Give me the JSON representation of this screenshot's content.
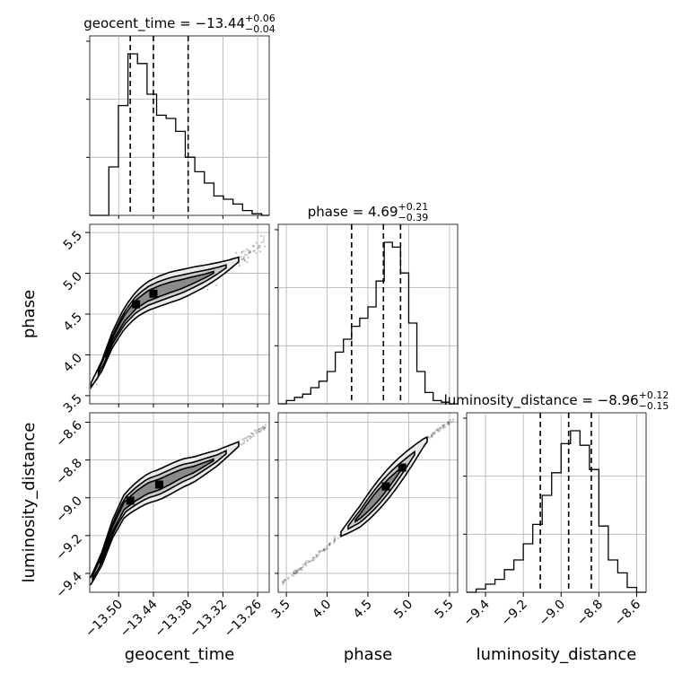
{
  "chart_data": {
    "type": "corner",
    "parameters": [
      "geocent_time",
      "phase",
      "luminosity_distance"
    ],
    "axis_labels": {
      "geocent_time": "geocent_time",
      "phase": "phase",
      "luminosity_distance": "luminosity_distance"
    },
    "ticks": {
      "geocent_time": {
        "range": [
          -13.55,
          -13.24
        ],
        "values": [
          -13.5,
          -13.44,
          -13.38,
          -13.32,
          -13.26
        ],
        "labels": [
          "−13.50",
          "−13.44",
          "−13.38",
          "−13.32",
          "−13.26"
        ]
      },
      "phase": {
        "range": [
          3.4,
          5.6
        ],
        "values": [
          3.5,
          4.0,
          4.5,
          5.0,
          5.5
        ],
        "labels": [
          "3.5",
          "4.0",
          "4.5",
          "5.0",
          "5.5"
        ]
      },
      "luminosity_distance": {
        "range": [
          -9.5,
          -8.55
        ],
        "values": [
          -9.4,
          -9.2,
          -9.0,
          -8.8,
          -8.6
        ],
        "labels": [
          "−9.4",
          "−9.2",
          "−9.0",
          "−8.8",
          "−8.6"
        ]
      }
    },
    "titles": {
      "geocent_time": {
        "prefix": "geocent_time = −13.44",
        "plus": "+0.06",
        "minus": "−0.04"
      },
      "phase": {
        "prefix": "phase = 4.69",
        "plus": "+0.21",
        "minus": "−0.39"
      },
      "luminosity_distance": {
        "prefix": "luminosity_distance = −8.96",
        "plus": "+0.12",
        "minus": "−0.15"
      }
    },
    "quantiles": {
      "geocent_time": [
        -13.48,
        -13.44,
        -13.38
      ],
      "phase": [
        4.3,
        4.69,
        4.9
      ],
      "luminosity_distance": [
        -9.11,
        -8.96,
        -8.84
      ]
    },
    "histograms": {
      "geocent_time": {
        "edges": [
          -13.55,
          -13.5335,
          -13.517,
          -13.5005,
          -13.484,
          -13.4675,
          -13.451,
          -13.4345,
          -13.418,
          -13.4015,
          -13.385,
          -13.3685,
          -13.352,
          -13.3355,
          -13.319,
          -13.3025,
          -13.286,
          -13.2695,
          -13.253,
          -13.24
        ],
        "counts": [
          0,
          0,
          0.3,
          0.68,
          1.0,
          0.94,
          0.75,
          0.62,
          0.6,
          0.52,
          0.36,
          0.27,
          0.2,
          0.12,
          0.1,
          0.07,
          0.03,
          0.01,
          0
        ]
      },
      "phase": {
        "edges": [
          3.4,
          3.5,
          3.6,
          3.7,
          3.8,
          3.9,
          4.0,
          4.1,
          4.2,
          4.3,
          4.4,
          4.5,
          4.6,
          4.7,
          4.8,
          4.9,
          5.0,
          5.1,
          5.2,
          5.3,
          5.4,
          5.5,
          5.6
        ],
        "counts": [
          0,
          0.02,
          0.04,
          0.06,
          0.1,
          0.14,
          0.2,
          0.32,
          0.4,
          0.48,
          0.53,
          0.6,
          0.76,
          1.0,
          0.97,
          0.81,
          0.5,
          0.2,
          0.07,
          0.02,
          0.01,
          0
        ]
      },
      "luminosity_distance": {
        "edges": [
          -9.5,
          -9.45,
          -9.4,
          -9.35,
          -9.3,
          -9.25,
          -9.2,
          -9.15,
          -9.1,
          -9.05,
          -9.0,
          -8.95,
          -8.9,
          -8.85,
          -8.8,
          -8.75,
          -8.7,
          -8.65,
          -8.6,
          -8.55
        ],
        "counts": [
          0,
          0.02,
          0.05,
          0.08,
          0.14,
          0.2,
          0.3,
          0.42,
          0.6,
          0.74,
          0.92,
          1.0,
          0.91,
          0.76,
          0.41,
          0.2,
          0.12,
          0.03,
          0
        ]
      }
    },
    "contour_levels": [
      0.39,
      0.86,
      0.99
    ],
    "joint_relations": {
      "phase_vs_geocent_time": {
        "x": [
          -13.55,
          -13.53,
          -13.51,
          -13.49,
          -13.47,
          -13.45,
          -13.43,
          -13.41,
          -13.39,
          -13.37,
          -13.35,
          -13.33,
          -13.31,
          -13.29,
          -13.27,
          -13.25
        ],
        "y": [
          3.6,
          3.85,
          4.2,
          4.45,
          4.62,
          4.72,
          4.78,
          4.83,
          4.87,
          4.92,
          4.97,
          5.03,
          5.1,
          5.18,
          5.27,
          5.38
        ],
        "core": [
          -13.47,
          -13.44
        ]
      },
      "luminosity_distance_vs_geocent_time": {
        "x": [
          -13.55,
          -13.53,
          -13.51,
          -13.49,
          -13.47,
          -13.45,
          -13.43,
          -13.41,
          -13.39,
          -13.37,
          -13.35,
          -13.33,
          -13.31,
          -13.29,
          -13.27,
          -13.25
        ],
        "y": [
          -9.45,
          -9.33,
          -9.16,
          -9.04,
          -8.99,
          -8.95,
          -8.93,
          -8.9,
          -8.87,
          -8.85,
          -8.82,
          -8.79,
          -8.75,
          -8.71,
          -8.67,
          -8.63
        ],
        "core": [
          -13.48,
          -13.43
        ]
      },
      "luminosity_distance_vs_phase": {
        "x": [
          3.45,
          3.6,
          3.8,
          4.0,
          4.2,
          4.4,
          4.6,
          4.8,
          5.0,
          5.2,
          5.4,
          5.55
        ],
        "y": [
          -9.45,
          -9.4,
          -9.33,
          -9.26,
          -9.18,
          -9.1,
          -9.0,
          -8.9,
          -8.8,
          -8.7,
          -8.63,
          -8.58
        ],
        "core": [
          4.72,
          4.92
        ]
      }
    }
  }
}
